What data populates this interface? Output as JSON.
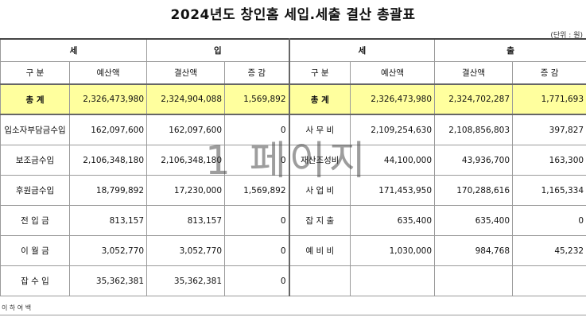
{
  "title": "2024년도 창인홈 세입.세출 결산 총괄표",
  "unit": "(단위 : 원)",
  "headers": {
    "income": [
      "세",
      "입"
    ],
    "expense": [
      "세",
      "출"
    ],
    "cols": [
      "구       분",
      "예산액",
      "결산액",
      "증       감",
      "구       분",
      "예산액",
      "결산액",
      "증       감"
    ]
  },
  "total": {
    "income_label": "총  계",
    "income_budget": "2,326,473,980",
    "income_settle": "2,324,904,088",
    "income_diff": "1,569,892",
    "expense_label": "총  계",
    "expense_budget": "2,326,473,980",
    "expense_settle": "2,324,702,287",
    "expense_diff": "1,771,693"
  },
  "rows": [
    {
      "i_label": "입소자부담금수입",
      "i_budget": "162,097,600",
      "i_settle": "162,097,600",
      "i_diff": "0",
      "e_label": "사  무  비",
      "e_budget": "2,109,254,630",
      "e_settle": "2,108,856,803",
      "e_diff": "397,827"
    },
    {
      "i_label": "보조금수입",
      "i_budget": "2,106,348,180",
      "i_settle": "2,106,348,180",
      "i_diff": "0",
      "e_label": "재산조성비",
      "e_budget": "44,100,000",
      "e_settle": "43,936,700",
      "e_diff": "163,300"
    },
    {
      "i_label": "후원금수입",
      "i_budget": "18,799,892",
      "i_settle": "17,230,000",
      "i_diff": "1,569,892",
      "e_label": "사  업  비",
      "e_budget": "171,453,950",
      "e_settle": "170,288,616",
      "e_diff": "1,165,334"
    },
    {
      "i_label": "전  입  금",
      "i_budget": "813,157",
      "i_settle": "813,157",
      "i_diff": "0",
      "e_label": "잡  지  출",
      "e_budget": "635,400",
      "e_settle": "635,400",
      "e_diff": "0"
    },
    {
      "i_label": "이  월  금",
      "i_budget": "3,052,770",
      "i_settle": "3,052,770",
      "i_diff": "0",
      "e_label": "예  비  비",
      "e_budget": "1,030,000",
      "e_settle": "984,768",
      "e_diff": "45,232"
    },
    {
      "i_label": "잡  수  입",
      "i_budget": "35,362,381",
      "i_settle": "35,362,381",
      "i_diff": "0",
      "e_label": "",
      "e_budget": "",
      "e_settle": "",
      "e_diff": ""
    }
  ],
  "footnote": "이 하 여 백",
  "watermark": "1 페이지"
}
